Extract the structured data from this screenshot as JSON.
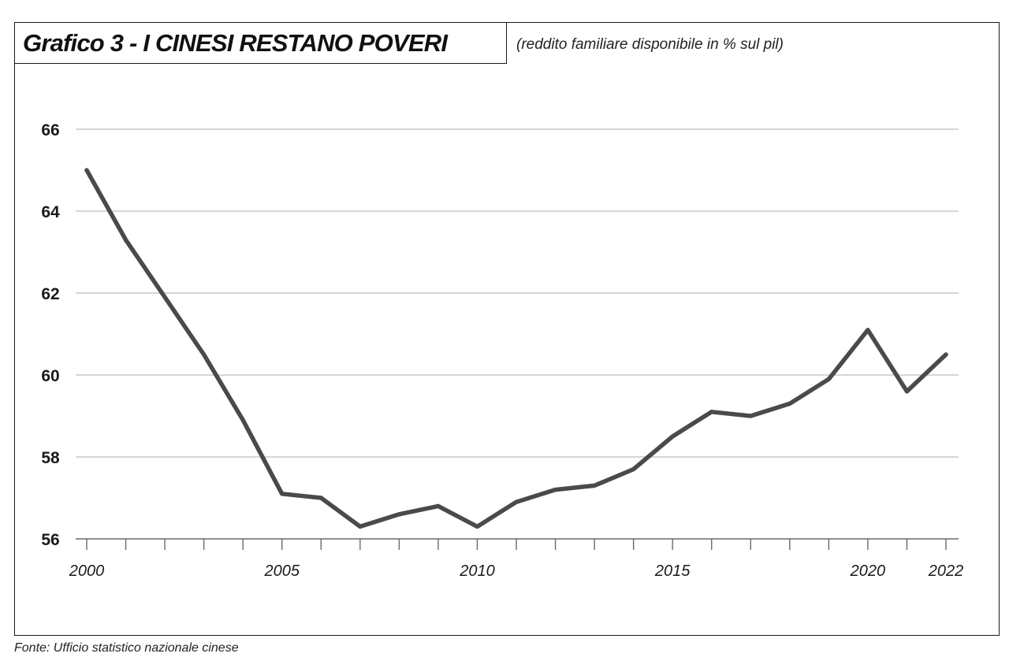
{
  "header": {
    "title": "Grafico 3 - I CINESI RESTANO POVERI",
    "subtitle": "(reddito familiare disponibile in % sul pil)"
  },
  "footer": {
    "source": "Fonte: Ufficio statistico nazionale cinese"
  },
  "colors": {
    "line": "#4a4a4a",
    "grid": "#c8c8c8",
    "axis": "#6a6a6a"
  },
  "chart_data": {
    "type": "line",
    "title": "Grafico 3 - I CINESI RESTANO POVERI",
    "subtitle": "(reddito familiare disponibile in % sul pil)",
    "xlabel": "",
    "ylabel": "",
    "xlim": [
      2000,
      2022
    ],
    "ylim": [
      56,
      66
    ],
    "yticks": [
      56,
      58,
      60,
      62,
      64,
      66
    ],
    "xtick_labels": [
      2000,
      2005,
      2010,
      2015,
      2020,
      2022
    ],
    "grid": "horizontal",
    "legend": "none",
    "series": [
      {
        "x": [
          2000,
          2001,
          2002,
          2003,
          2004,
          2005,
          2006,
          2007,
          2008,
          2009,
          2010,
          2011,
          2012,
          2013,
          2014,
          2015,
          2016,
          2017,
          2018,
          2019,
          2020,
          2021,
          2022
        ],
        "values": [
          65.0,
          63.3,
          61.9,
          60.5,
          58.9,
          57.1,
          57.0,
          56.3,
          56.6,
          56.8,
          56.3,
          56.9,
          57.2,
          57.3,
          57.7,
          58.5,
          59.1,
          59.0,
          59.3,
          59.9,
          61.1,
          59.6,
          60.5
        ]
      }
    ]
  }
}
